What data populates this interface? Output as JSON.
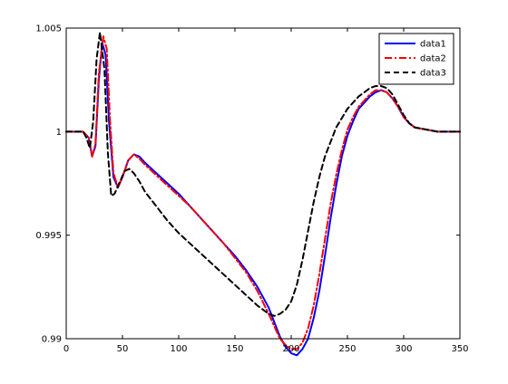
{
  "chart_data": {
    "type": "line",
    "title": "",
    "xlabel": "",
    "ylabel": "",
    "xlim": [
      0,
      350
    ],
    "ylim": [
      0.99,
      1.005
    ],
    "xticks": [
      0,
      50,
      100,
      150,
      200,
      250,
      300,
      350
    ],
    "xtick_labels": [
      "0",
      "50",
      "100",
      "150",
      "200",
      "250",
      "300",
      "350"
    ],
    "yticks": [
      0.99,
      0.995,
      1.0,
      1.005
    ],
    "ytick_labels": [
      "0.99",
      "0.995",
      "1",
      "1.005"
    ],
    "grid": false,
    "legend_position": "top-right",
    "series": [
      {
        "name": "data1",
        "color": "#0000ff",
        "style": "solid",
        "x": [
          0,
          15,
          20,
          23,
          26,
          29,
          32,
          35,
          38,
          42,
          46,
          50,
          55,
          60,
          65,
          70,
          80,
          90,
          100,
          110,
          120,
          130,
          140,
          150,
          160,
          170,
          180,
          185,
          190,
          195,
          200,
          205,
          210,
          215,
          220,
          225,
          230,
          235,
          240,
          245,
          250,
          255,
          260,
          265,
          270,
          275,
          280,
          285,
          290,
          295,
          300,
          305,
          310,
          320,
          330,
          340,
          350
        ],
        "y": [
          1.0,
          1.0,
          0.9997,
          0.9988,
          0.9993,
          1.0025,
          1.0043,
          1.0037,
          1.0005,
          0.9978,
          0.9973,
          0.9978,
          0.9986,
          0.9989,
          0.9988,
          0.9985,
          0.998,
          0.9975,
          0.997,
          0.9964,
          0.9958,
          0.9952,
          0.9946,
          0.994,
          0.9933,
          0.9925,
          0.9915,
          0.9908,
          0.9901,
          0.9896,
          0.9893,
          0.9892,
          0.9895,
          0.99,
          0.991,
          0.9923,
          0.994,
          0.9958,
          0.9974,
          0.9988,
          0.9998,
          1.0005,
          1.0011,
          1.0014,
          1.0017,
          1.0019,
          1.002,
          1.0019,
          1.0016,
          1.0012,
          1.0007,
          1.0004,
          1.0002,
          1.0001,
          1.0,
          1.0,
          1.0
        ]
      },
      {
        "name": "data2",
        "color": "#ff0000",
        "style": "dashdot",
        "x": [
          0,
          15,
          20,
          23,
          26,
          29,
          33,
          36,
          39,
          42,
          46,
          50,
          55,
          60,
          65,
          70,
          80,
          90,
          100,
          110,
          120,
          130,
          140,
          150,
          160,
          170,
          180,
          185,
          190,
          195,
          200,
          205,
          210,
          215,
          220,
          225,
          230,
          235,
          240,
          245,
          250,
          255,
          260,
          265,
          270,
          275,
          280,
          285,
          290,
          295,
          300,
          305,
          310,
          320,
          330,
          340,
          350
        ],
        "y": [
          1.0,
          1.0,
          0.9997,
          0.9988,
          0.9994,
          1.0028,
          1.0046,
          1.004,
          1.0005,
          0.998,
          0.9973,
          0.9978,
          0.9986,
          0.9989,
          0.9987,
          0.9984,
          0.9979,
          0.9974,
          0.9969,
          0.9964,
          0.9958,
          0.9952,
          0.9946,
          0.9939,
          0.9932,
          0.9923,
          0.9912,
          0.9906,
          0.99,
          0.9897,
          0.9895,
          0.9895,
          0.9898,
          0.9905,
          0.9916,
          0.9931,
          0.9948,
          0.9965,
          0.9979,
          0.9991,
          1.0001,
          1.0007,
          1.0012,
          1.0015,
          1.0018,
          1.002,
          1.002,
          1.0019,
          1.0016,
          1.0012,
          1.0007,
          1.0004,
          1.0002,
          1.0001,
          1.0,
          1.0,
          1.0
        ]
      },
      {
        "name": "data3",
        "color": "#000000",
        "style": "dashed",
        "x": [
          0,
          15,
          18,
          21,
          24,
          27,
          30,
          34,
          37,
          40,
          43,
          47,
          52,
          56,
          60,
          65,
          70,
          80,
          90,
          100,
          110,
          120,
          130,
          140,
          150,
          160,
          170,
          175,
          180,
          185,
          190,
          195,
          200,
          205,
          210,
          215,
          220,
          225,
          230,
          240,
          250,
          260,
          270,
          275,
          280,
          285,
          290,
          295,
          300,
          305,
          310,
          320,
          330,
          340,
          350
        ],
        "y": [
          1.0,
          1.0,
          0.9997,
          0.9992,
          1.0005,
          1.0035,
          1.0048,
          1.003,
          0.999,
          0.9969,
          0.997,
          0.9975,
          0.9981,
          0.9982,
          0.998,
          0.9976,
          0.9971,
          0.9964,
          0.9957,
          0.9951,
          0.9946,
          0.9941,
          0.9936,
          0.9931,
          0.9926,
          0.9921,
          0.9916,
          0.9914,
          0.9912,
          0.9911,
          0.9912,
          0.9914,
          0.9918,
          0.9926,
          0.9938,
          0.9952,
          0.9966,
          0.9978,
          0.9988,
          1.0002,
          1.0011,
          1.0017,
          1.0021,
          1.0022,
          1.0022,
          1.0021,
          1.0018,
          1.0013,
          1.0008,
          1.0004,
          1.0002,
          1.0001,
          1.0,
          1.0,
          1.0
        ]
      }
    ]
  }
}
